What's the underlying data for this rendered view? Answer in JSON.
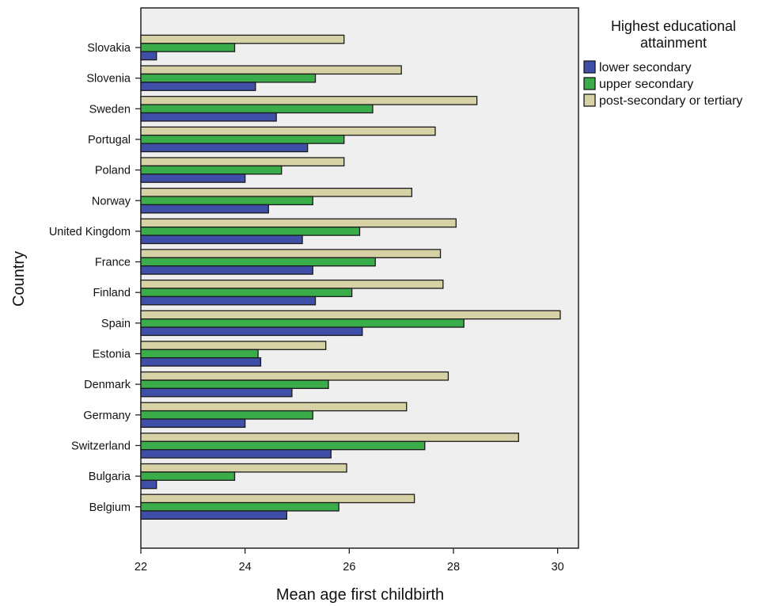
{
  "chart_data": {
    "type": "bar",
    "orientation": "horizontal",
    "categories": [
      "Slovakia",
      "Slovenia",
      "Sweden",
      "Portugal",
      "Poland",
      "Norway",
      "United Kingdom",
      "France",
      "Finland",
      "Spain",
      "Estonia",
      "Denmark",
      "Germany",
      "Switzerland",
      "Bulgaria",
      "Belgium"
    ],
    "series": [
      {
        "name": "lower secondary",
        "color": "#3f4fa8",
        "values": [
          22.3,
          24.2,
          24.6,
          25.2,
          24.0,
          24.45,
          25.1,
          25.3,
          25.35,
          26.25,
          24.3,
          24.9,
          24.0,
          25.65,
          22.3,
          24.8
        ]
      },
      {
        "name": "upper secondary",
        "color": "#3aac4a",
        "values": [
          23.8,
          25.35,
          26.45,
          25.9,
          24.7,
          25.3,
          26.2,
          26.5,
          26.05,
          28.2,
          24.25,
          25.6,
          25.3,
          27.45,
          23.8,
          25.8
        ]
      },
      {
        "name": "post-secondary or tertiary",
        "color": "#d6d2a6",
        "values": [
          25.9,
          27.0,
          28.45,
          27.65,
          25.9,
          27.2,
          28.05,
          27.75,
          27.8,
          30.05,
          25.55,
          27.9,
          27.1,
          29.25,
          25.95,
          27.25
        ]
      }
    ],
    "xlabel": "Mean age first childbirth",
    "ylabel": "Country",
    "xlim": [
      22,
      30.4
    ],
    "xticks": [
      "22",
      "24",
      "26",
      "28",
      "30"
    ],
    "grid": false,
    "legend": {
      "title_lines": [
        "Highest educational",
        "attainment"
      ],
      "placement": "right"
    },
    "plot_background": "#efefef"
  }
}
